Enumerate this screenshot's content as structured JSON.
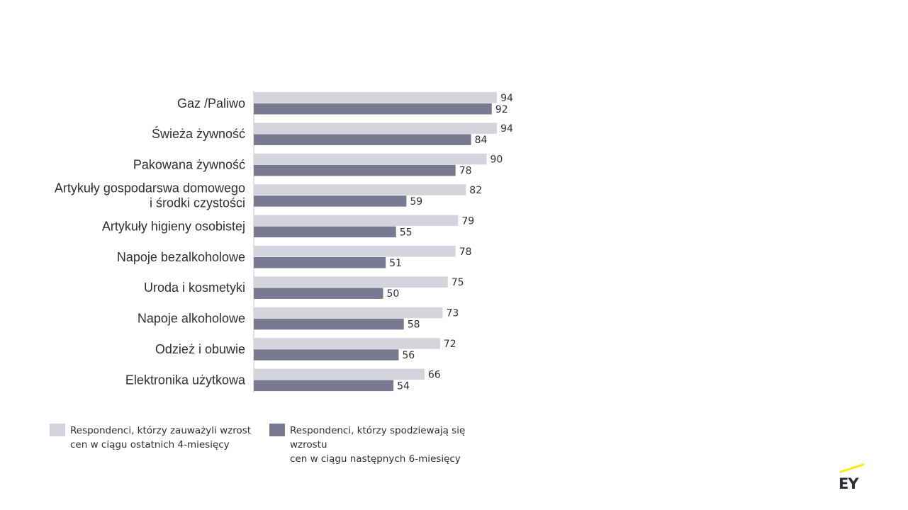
{
  "chart_data": {
    "type": "bar",
    "orientation": "horizontal",
    "categories": [
      [
        "Gaz /Paliwo"
      ],
      [
        "Świeża żywność"
      ],
      [
        "Pakowana żywność"
      ],
      [
        "Artykuły gospodarswa domowego",
        "i środki czystości"
      ],
      [
        "Artykuły higieny osobistej"
      ],
      [
        "Napoje bezalkoholowe"
      ],
      [
        "Uroda i kosmetyki"
      ],
      [
        "Napoje alkoholowe"
      ],
      [
        "Odzież i obuwie"
      ],
      [
        "Elektronika użytkowa"
      ]
    ],
    "series": [
      {
        "name": "Respondenci, którzy zauważyli wzrost cen w ciągu ostatnich 4-miesięcy",
        "legend_lines": [
          "Respondenci, którzy zauważyli wzrost",
          "cen w ciągu ostatnich 4-miesięcy"
        ],
        "color": "#d4d4dc",
        "values": [
          94,
          94,
          90,
          82,
          79,
          78,
          75,
          73,
          72,
          66
        ]
      },
      {
        "name": "Respondenci, którzy spodziewają się wzrostu cen w ciągu następnych 6-miesięcy",
        "legend_lines": [
          "Respondenci, którzy spodziewają się wzrostu",
          "cen w ciągu następnych 6-miesięcy"
        ],
        "color": "#797991",
        "values": [
          92,
          84,
          78,
          59,
          55,
          51,
          50,
          58,
          56,
          54
        ]
      }
    ],
    "xlim": [
      0,
      100
    ],
    "grid": false,
    "legend_position": "bottom"
  },
  "brand": {
    "logo_text": "EY",
    "accent": "#ffe600",
    "text_color": "#2e2e38"
  }
}
